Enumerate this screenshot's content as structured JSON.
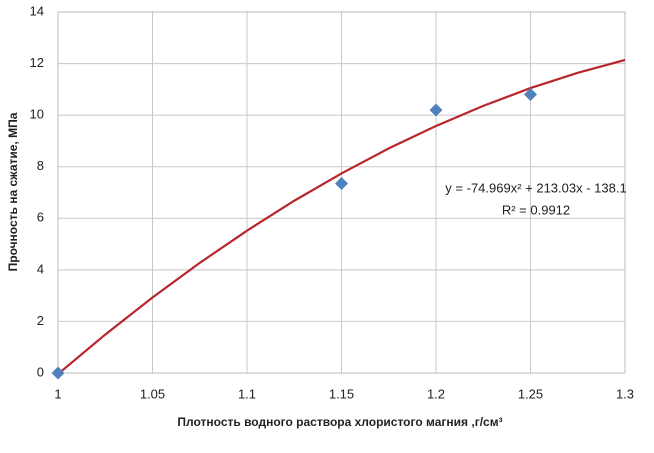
{
  "chart_data": {
    "type": "scatter",
    "x_label": "Плотность водного раствора хлористого магния ,г/см³",
    "y_label": "Прочность на сжатие, МПа",
    "points": {
      "x": [
        1,
        1.15,
        1.2,
        1.25
      ],
      "values": [
        0,
        7.35,
        10.2,
        10.8
      ],
      "color": "#4f81bd"
    },
    "trendline": {
      "x": [
        1,
        1.025,
        1.05,
        1.075,
        1.1,
        1.125,
        1.15,
        1.175,
        1.2,
        1.225,
        1.25,
        1.275,
        1.3
      ],
      "values": [
        -0.04,
        1.49,
        2.93,
        4.27,
        5.52,
        6.68,
        7.74,
        8.71,
        9.58,
        10.36,
        11.05,
        11.64,
        12.14
      ],
      "color": "#b8262b",
      "equation": "y = -74.969x² + 213.03x - 138.1",
      "r_squared": "R² = 0.9912"
    },
    "xlim": [
      1,
      1.3
    ],
    "xticks": [
      1,
      1.05,
      1.1,
      1.15,
      1.2,
      1.25,
      1.3
    ],
    "ylim": [
      0,
      14
    ],
    "yticks": [
      0,
      2,
      4,
      6,
      8,
      10,
      12,
      14
    ],
    "grid": true
  }
}
